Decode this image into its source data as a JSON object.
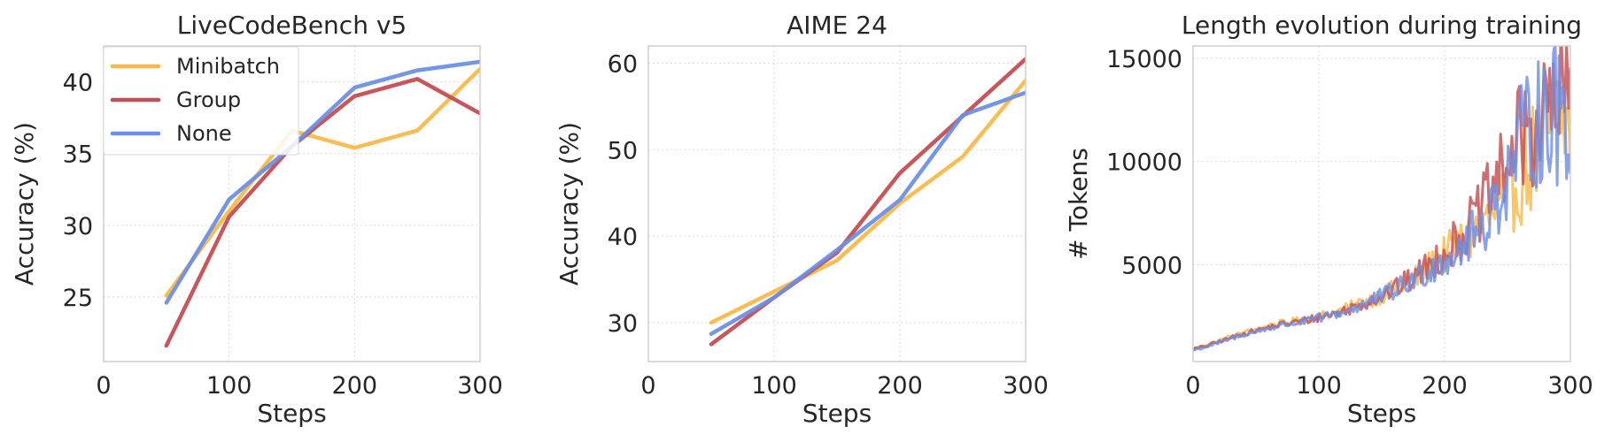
{
  "colors": {
    "Minibatch": "#F9B94A",
    "Group": "#C44E52",
    "None": "#6E8FE5"
  },
  "chart_data": [
    {
      "type": "line",
      "title": "LiveCodeBench v5",
      "xlabel": "Steps",
      "ylabel": "Accuracy (%)",
      "xlim": [
        0,
        300
      ],
      "ylim": [
        20.5,
        42.5
      ],
      "xticks": [
        0,
        100,
        200,
        300
      ],
      "yticks": [
        25,
        30,
        35,
        40
      ],
      "grid": true,
      "legend": "upper-left",
      "x": [
        50,
        100,
        150,
        200,
        250,
        300
      ],
      "series": [
        {
          "name": "Minibatch",
          "color": "#F9B94A",
          "values": [
            25.1,
            31.0,
            36.6,
            35.4,
            36.6,
            40.9
          ]
        },
        {
          "name": "Group",
          "color": "#C44E52",
          "values": [
            21.6,
            30.6,
            35.5,
            39.0,
            40.2,
            37.8
          ]
        },
        {
          "name": "None",
          "color": "#6E8FE5",
          "values": [
            24.6,
            31.8,
            35.5,
            39.6,
            40.8,
            41.4
          ]
        }
      ]
    },
    {
      "type": "line",
      "title": "AIME 24",
      "xlabel": "Steps",
      "ylabel": "Accuracy (%)",
      "xlim": [
        0,
        300
      ],
      "ylim": [
        25.5,
        62
      ],
      "xticks": [
        0,
        100,
        200,
        300
      ],
      "yticks": [
        30,
        40,
        50,
        60
      ],
      "grid": true,
      "x": [
        50,
        100,
        150,
        200,
        250,
        300
      ],
      "series": [
        {
          "name": "Minibatch",
          "color": "#F9B94A",
          "values": [
            30.0,
            33.6,
            37.2,
            43.8,
            49.2,
            58.0
          ]
        },
        {
          "name": "Group",
          "color": "#C44E52",
          "values": [
            27.5,
            32.9,
            38.1,
            47.3,
            53.9,
            60.5
          ]
        },
        {
          "name": "None",
          "color": "#6E8FE5",
          "values": [
            28.7,
            32.9,
            38.4,
            44.2,
            54.0,
            56.6
          ]
        }
      ]
    },
    {
      "type": "line",
      "title": "Length evolution during training",
      "xlabel": "Steps",
      "ylabel": "# Tokens",
      "xlim": [
        0,
        300
      ],
      "ylim": [
        300,
        15600
      ],
      "xticks": [
        0,
        100,
        200,
        300
      ],
      "yticks": [
        5000,
        10000,
        15000
      ],
      "grid": true,
      "x": [
        0,
        10,
        20,
        30,
        40,
        50,
        60,
        70,
        80,
        90,
        100,
        110,
        120,
        130,
        140,
        150,
        160,
        170,
        180,
        190,
        200,
        210,
        220,
        230,
        240,
        250,
        260,
        270,
        280,
        290,
        300
      ],
      "series": [
        {
          "name": "Minibatch",
          "color": "#F9B94A",
          "values": [
            900,
            1100,
            1300,
            1500,
            1700,
            1850,
            2000,
            2150,
            2250,
            2350,
            2500,
            2650,
            2800,
            3050,
            3300,
            3500,
            3800,
            4100,
            4500,
            5000,
            5500,
            5900,
            6300,
            6900,
            7500,
            8200,
            9200,
            10200,
            11200,
            11900,
            11500
          ]
        },
        {
          "name": "Group",
          "color": "#C44E52",
          "values": [
            900,
            1050,
            1250,
            1450,
            1650,
            1800,
            1950,
            2100,
            2200,
            2300,
            2450,
            2600,
            2750,
            3000,
            3250,
            3500,
            3800,
            4150,
            4600,
            5100,
            5600,
            6200,
            6900,
            7700,
            8800,
            10000,
            11000,
            11700,
            12200,
            12600,
            13000
          ]
        },
        {
          "name": "None",
          "color": "#6E8FE5",
          "values": [
            850,
            1000,
            1200,
            1400,
            1600,
            1750,
            1900,
            2050,
            2150,
            2250,
            2400,
            2550,
            2700,
            2950,
            3200,
            3450,
            3750,
            4050,
            4450,
            4900,
            5300,
            5700,
            6200,
            6900,
            7900,
            9200,
            10800,
            11800,
            12200,
            12300,
            12100
          ]
        }
      ]
    }
  ]
}
